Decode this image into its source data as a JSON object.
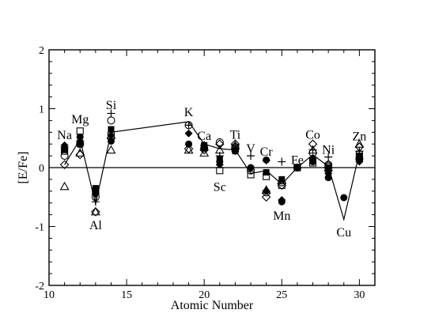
{
  "chart_data": {
    "type": "scatter",
    "xlabel": "Atomic Number",
    "ylabel": "[E/Fe]",
    "xlim": [
      10,
      31
    ],
    "ylim": [
      -2,
      2
    ],
    "xticks": [
      10,
      15,
      20,
      25,
      30
    ],
    "yticks": [
      -2,
      -1,
      0,
      1,
      2
    ],
    "reference_line_y": 0,
    "grid": false,
    "element_labels": [
      {
        "text": "Na",
        "x": 11,
        "y": 0.55
      },
      {
        "text": "Mg",
        "x": 12,
        "y": 0.82
      },
      {
        "text": "Al",
        "x": 13,
        "y": -0.98
      },
      {
        "text": "Si",
        "x": 14,
        "y": 1.06
      },
      {
        "text": "K",
        "x": 19,
        "y": 0.94
      },
      {
        "text": "Ca",
        "x": 20,
        "y": 0.54
      },
      {
        "text": "Sc",
        "x": 21,
        "y": -0.33
      },
      {
        "text": "Ti",
        "x": 22,
        "y": 0.56
      },
      {
        "text": "V",
        "x": 23,
        "y": 0.32
      },
      {
        "text": "Cr",
        "x": 24,
        "y": 0.27
      },
      {
        "text": "Mn",
        "x": 25,
        "y": -0.82
      },
      {
        "text": "Fe",
        "x": 26,
        "y": 0.13
      },
      {
        "text": "Co",
        "x": 27,
        "y": 0.56
      },
      {
        "text": "Ni",
        "x": 28,
        "y": 0.3
      },
      {
        "text": "Cu",
        "x": 29,
        "y": -1.1
      },
      {
        "text": "Zn",
        "x": 30,
        "y": 0.53
      }
    ],
    "model_line": {
      "x": [
        11,
        12,
        13,
        14,
        19,
        20,
        21,
        22,
        23,
        24,
        25,
        26,
        27,
        28,
        29,
        30
      ],
      "y": [
        0.05,
        0.48,
        -0.62,
        0.6,
        0.78,
        0.4,
        0.32,
        0.3,
        -0.1,
        -0.05,
        -0.28,
        0.0,
        0.22,
        0.02,
        -0.88,
        0.25
      ]
    },
    "series": [
      {
        "marker": "filled-circle",
        "x": [
          12,
          13,
          14,
          19,
          20,
          21,
          22,
          23,
          24,
          25,
          26,
          27,
          28,
          28,
          29,
          30
        ],
        "y": [
          0.52,
          -0.4,
          0.45,
          0.4,
          0.34,
          0.1,
          0.3,
          0.0,
          0.13,
          -0.58,
          0.0,
          0.1,
          -0.05,
          -0.17,
          -0.51,
          0.12
        ]
      },
      {
        "marker": "open-circle",
        "x": [
          11,
          12,
          13,
          14,
          19,
          20,
          21,
          22,
          23,
          24,
          25,
          26,
          27,
          28,
          30
        ],
        "y": [
          0.2,
          0.4,
          -0.5,
          0.8,
          0.72,
          0.33,
          0.43,
          0.35,
          -0.05,
          -0.42,
          -0.25,
          0.0,
          0.25,
          0.05,
          0.15
        ]
      },
      {
        "marker": "filled-square",
        "x": [
          11,
          12,
          13,
          14,
          20,
          21,
          22,
          24,
          25,
          26,
          27,
          28,
          30
        ],
        "y": [
          0.3,
          0.4,
          -0.35,
          0.65,
          0.38,
          0.15,
          0.28,
          -0.08,
          -0.2,
          0.0,
          0.12,
          0.0,
          0.2
        ]
      },
      {
        "marker": "open-square",
        "x": [
          11,
          12,
          13,
          14,
          21,
          22,
          23,
          24,
          25,
          26,
          27,
          28,
          30
        ],
        "y": [
          0.28,
          0.62,
          -0.4,
          0.55,
          -0.05,
          0.32,
          -0.12,
          -0.15,
          -0.3,
          0.0,
          0.08,
          0.02,
          0.22
        ]
      },
      {
        "marker": "filled-diamond",
        "x": [
          11,
          12,
          13,
          14,
          19,
          20,
          21,
          22,
          24,
          25,
          27,
          28,
          30
        ],
        "y": [
          0.38,
          0.45,
          -0.45,
          0.55,
          0.58,
          0.38,
          0.05,
          0.28,
          -0.4,
          -0.55,
          0.15,
          -0.1,
          0.1
        ]
      },
      {
        "marker": "open-diamond",
        "x": [
          11,
          12,
          13,
          14,
          19,
          20,
          21,
          22,
          24,
          25,
          27,
          28,
          30
        ],
        "y": [
          0.05,
          0.22,
          -0.75,
          0.5,
          0.32,
          0.3,
          0.4,
          0.4,
          -0.5,
          -0.3,
          0.4,
          -0.05,
          0.35
        ]
      },
      {
        "marker": "open-triangle",
        "x": [
          11,
          12,
          13,
          14,
          19,
          20,
          21,
          22,
          24,
          25,
          27,
          28,
          30
        ],
        "y": [
          -0.32,
          0.25,
          -0.75,
          0.3,
          0.3,
          0.25,
          0.3,
          0.37,
          -0.38,
          -0.22,
          0.3,
          0.05,
          0.4
        ]
      },
      {
        "marker": "plus",
        "x": [
          11,
          12,
          13,
          14,
          19,
          20,
          21,
          22,
          23,
          24,
          25,
          26,
          27,
          28,
          30
        ],
        "y": [
          0.35,
          0.45,
          -0.58,
          0.92,
          0.72,
          0.38,
          0.2,
          0.38,
          0.2,
          0.12,
          0.1,
          0.0,
          0.3,
          0.18,
          0.28
        ]
      }
    ]
  }
}
